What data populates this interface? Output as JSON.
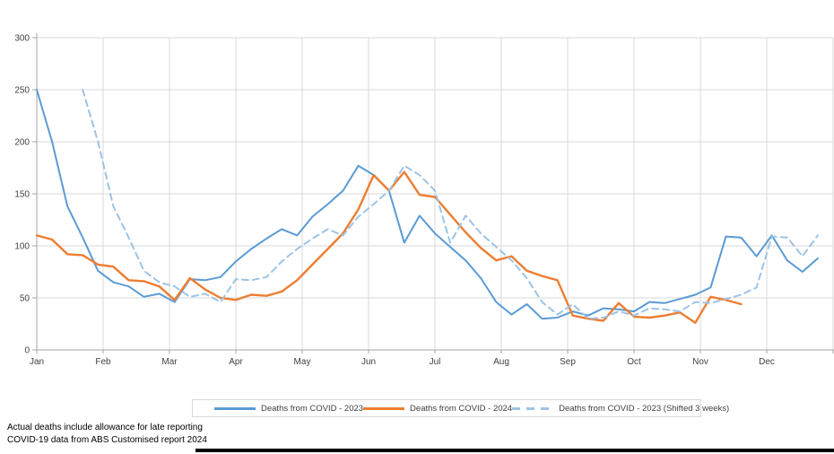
{
  "chart_data": {
    "type": "line",
    "title": "",
    "x_axis": {
      "months": [
        "Jan",
        "Feb",
        "Mar",
        "Apr",
        "May",
        "Jun",
        "Jul",
        "Aug",
        "Sep",
        "Oct",
        "Nov",
        "Dec"
      ],
      "weeks_total": 52
    },
    "y_axis": {
      "ticks": [
        300,
        250,
        200,
        150,
        100,
        50,
        0
      ],
      "min": 0,
      "max": 300
    },
    "grid": true,
    "legend_position": "bottom",
    "series": [
      {
        "name": "Deaths from COVID - 2023",
        "color": "#5B9BD5",
        "style": "solid",
        "start_week": 1,
        "values": [
          250,
          200,
          138,
          108,
          76,
          65,
          61,
          51,
          54,
          46,
          68,
          67,
          70,
          85,
          97,
          107,
          116,
          110,
          128,
          140,
          153,
          177,
          168,
          153,
          103,
          129,
          112,
          99,
          86,
          69,
          46,
          34,
          44,
          30,
          31,
          37,
          33,
          40,
          39,
          37,
          46,
          45,
          49,
          53,
          60,
          109,
          108,
          90,
          110,
          86,
          75,
          88
        ]
      },
      {
        "name": "Deaths from COVID - 2024",
        "color": "#ED7D31",
        "style": "solid",
        "start_week": 1,
        "values": [
          110,
          106,
          92,
          91,
          82,
          80,
          67,
          66,
          61,
          48,
          69,
          58,
          50,
          48,
          53,
          52,
          56,
          67,
          82,
          97,
          112,
          135,
          168,
          153,
          171,
          149,
          147,
          130,
          113,
          98,
          86,
          90,
          76,
          71,
          67,
          33,
          30,
          28,
          45,
          32,
          31,
          33,
          36,
          26,
          51,
          48,
          44
        ]
      },
      {
        "name": "Deaths from COVID - 2023 (Shifted 3 weeks)",
        "color": "#9DC3E6",
        "style": "dashed",
        "start_week": 4,
        "shift_weeks": 3,
        "values": [
          250,
          200,
          138,
          108,
          76,
          65,
          61,
          51,
          54,
          46,
          68,
          67,
          70,
          85,
          97,
          107,
          116,
          110,
          128,
          140,
          153,
          177,
          168,
          153,
          103,
          129,
          112,
          99,
          86,
          69,
          46,
          34,
          44,
          30,
          31,
          37,
          33,
          40,
          39,
          37,
          46,
          45,
          49,
          53,
          60,
          109,
          108,
          90,
          110
        ]
      }
    ]
  },
  "footnotes": [
    "Actual deaths include allowance for late reporting",
    "COVID-19 data from ABS Customised report 2024"
  ]
}
